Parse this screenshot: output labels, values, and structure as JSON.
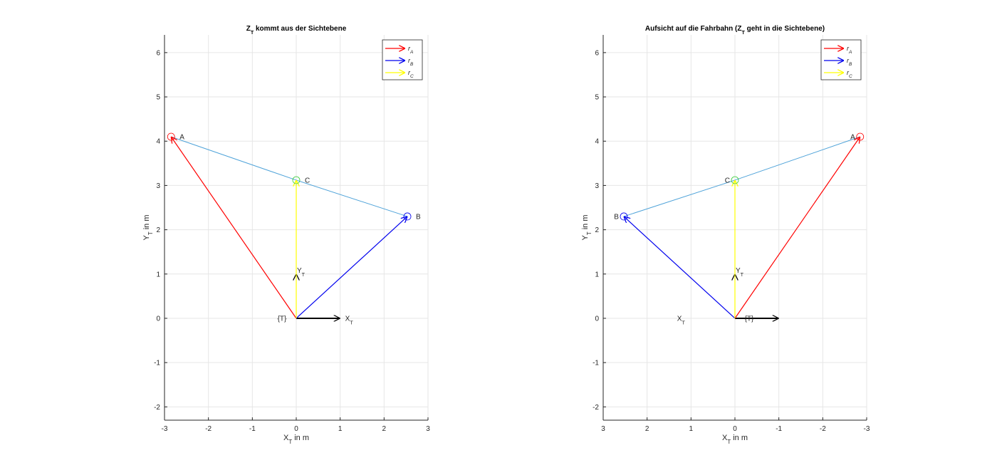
{
  "chart_data": [
    {
      "type": "quiver",
      "title_main": "Z",
      "title_sub": "T",
      "title_rest": " kommt aus der Sichtebene",
      "xlabel_main": "X",
      "xlabel_sub": "T",
      "xlabel_rest": " in m",
      "ylabel_main": "Y",
      "ylabel_sub": "T",
      "ylabel_rest": " in m",
      "xlim": [
        -3,
        3
      ],
      "ylim": [
        -2.3,
        6.4
      ],
      "x_reversed": false,
      "grid": true,
      "xticks": [
        -3,
        -2,
        -1,
        0,
        1,
        2,
        3
      ],
      "yticks": [
        -2,
        -1,
        0,
        1,
        2,
        3,
        4,
        5,
        6
      ],
      "points": [
        {
          "name": "A",
          "x": -2.85,
          "y": 4.1
        },
        {
          "name": "C",
          "x": 0.0,
          "y": 3.12
        },
        {
          "name": "B",
          "x": 2.53,
          "y": 2.3
        }
      ],
      "origin_label": "{T}",
      "axis_x_label": "X",
      "axis_x_sub": "T",
      "axis_y_label": "Y",
      "axis_y_sub": "T",
      "legend_placement": "top-right",
      "series": [
        {
          "name": "r_A",
          "legend_main": "r",
          "legend_sub": "A",
          "color": "#ff0000",
          "to": [
            -2.85,
            4.1
          ]
        },
        {
          "name": "r_B",
          "legend_main": "r",
          "legend_sub": "B",
          "color": "#0000ee",
          "to": [
            2.53,
            2.3
          ]
        },
        {
          "name": "r_C",
          "legend_main": "r",
          "legend_sub": "C",
          "color": "#ffff00",
          "to": [
            0.0,
            3.12
          ]
        }
      ],
      "path_color": "#4fa3d9",
      "axis_arrow_color": "#000000"
    },
    {
      "type": "quiver",
      "title_main": "Aufsicht auf die Fahrbahn (Z",
      "title_sub": "T",
      "title_rest": " geht in die  Sichtebene)",
      "xlabel_main": "X",
      "xlabel_sub": "T",
      "xlabel_rest": " in m",
      "ylabel_main": "Y",
      "ylabel_sub": "T",
      "ylabel_rest": " in m",
      "xlim": [
        3,
        -3
      ],
      "ylim": [
        -2.3,
        6.4
      ],
      "x_reversed": true,
      "grid": true,
      "xticks": [
        3,
        2,
        1,
        0,
        -1,
        -2,
        -3
      ],
      "yticks": [
        -2,
        -1,
        0,
        1,
        2,
        3,
        4,
        5,
        6
      ],
      "points": [
        {
          "name": "A",
          "x": -2.85,
          "y": 4.1
        },
        {
          "name": "C",
          "x": 0.0,
          "y": 3.12
        },
        {
          "name": "B",
          "x": 2.53,
          "y": 2.3
        }
      ],
      "origin_label": "{T}",
      "axis_x_label": "X",
      "axis_x_sub": "T",
      "axis_y_label": "Y",
      "axis_y_sub": "T",
      "legend_placement": "top-right",
      "series": [
        {
          "name": "r_A",
          "legend_main": "r",
          "legend_sub": "A",
          "color": "#ff0000",
          "to": [
            -2.85,
            4.1
          ]
        },
        {
          "name": "r_B",
          "legend_main": "r",
          "legend_sub": "B",
          "color": "#0000ee",
          "to": [
            2.53,
            2.3
          ]
        },
        {
          "name": "r_C",
          "legend_main": "r",
          "legend_sub": "C",
          "color": "#ffff00",
          "to": [
            0.0,
            3.12
          ]
        }
      ],
      "path_color": "#4fa3d9",
      "axis_arrow_color": "#000000"
    }
  ]
}
